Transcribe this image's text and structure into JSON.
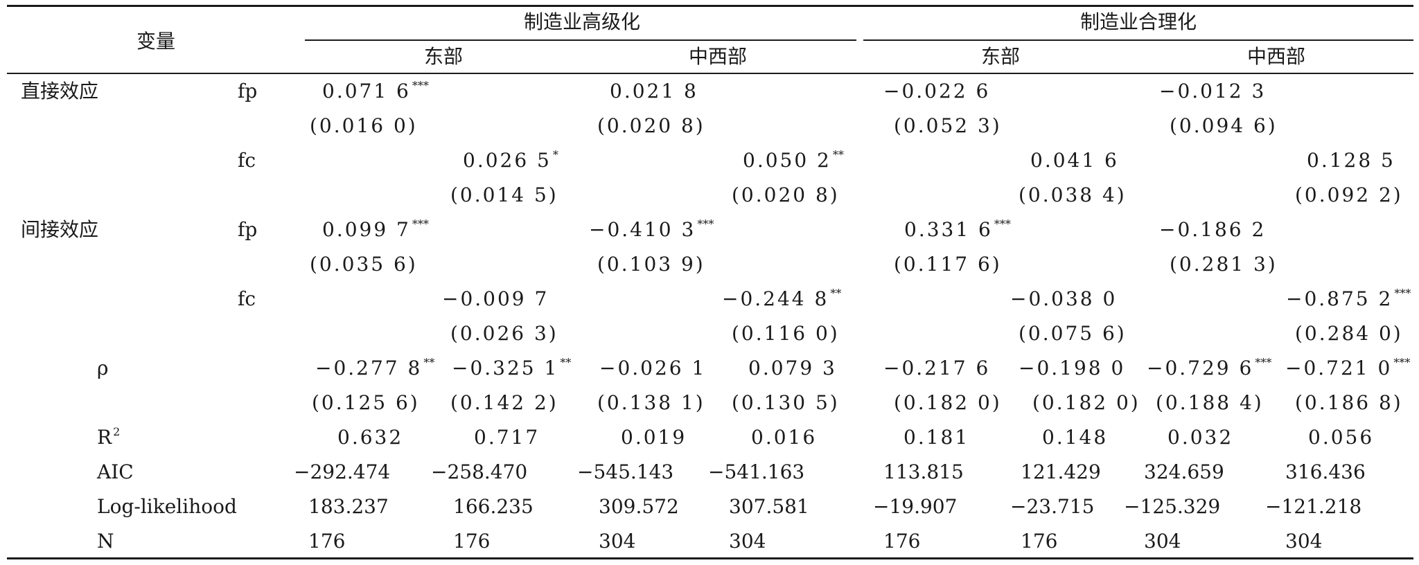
{
  "header": {
    "variable": "变量",
    "group_high": "制造业高级化",
    "group_rational": "制造业合理化",
    "east": "东部",
    "midwest": "中西部"
  },
  "sections": {
    "direct": "直接效应",
    "indirect": "间接效应"
  },
  "vars": {
    "fp": "fp",
    "fc": "fc"
  },
  "direct": {
    "fp": {
      "c1": {
        "v": "0.071 6",
        "s": "***",
        "se": "(0.016 0)"
      },
      "c3": {
        "v": "0.021 8",
        "s": "",
        "se": "(0.020 8)"
      },
      "c5": {
        "v": "−0.022 6",
        "s": "",
        "se": "(0.052 3)"
      },
      "c7": {
        "v": "−0.012 3",
        "s": "",
        "se": "(0.094 6)"
      }
    },
    "fc": {
      "c2": {
        "v": "0.026 5",
        "s": "*",
        "se": "(0.014 5)"
      },
      "c4": {
        "v": "0.050 2",
        "s": "**",
        "se": "(0.020 8)"
      },
      "c6": {
        "v": "0.041 6",
        "s": "",
        "se": "(0.038 4)"
      },
      "c8": {
        "v": "0.128 5",
        "s": "",
        "se": "(0.092 2)"
      }
    }
  },
  "indirect": {
    "fp": {
      "c1": {
        "v": "0.099 7",
        "s": "***",
        "se": "(0.035 6)"
      },
      "c3": {
        "v": "−0.410 3",
        "s": "***",
        "se": "(0.103 9)"
      },
      "c5": {
        "v": "0.331 6",
        "s": "***",
        "se": "(0.117 6)"
      },
      "c7": {
        "v": "−0.186 2",
        "s": "",
        "se": "(0.281 3)"
      }
    },
    "fc": {
      "c2": {
        "v": "−0.009 7",
        "s": "",
        "se": "(0.026 3)"
      },
      "c4": {
        "v": "−0.244 8",
        "s": "**",
        "se": "(0.116 0)"
      },
      "c6": {
        "v": "−0.038 0",
        "s": "",
        "se": "(0.075 6)"
      },
      "c8": {
        "v": "−0.875 2",
        "s": "***",
        "se": "(0.284 0)"
      }
    }
  },
  "rho": {
    "label": "ρ",
    "values": [
      {
        "v": "−0.277 8",
        "s": "**",
        "se": "(0.125 6)"
      },
      {
        "v": "−0.325 1",
        "s": "**",
        "se": "(0.142 2)"
      },
      {
        "v": "−0.026 1",
        "s": "",
        "se": "(0.138 1)"
      },
      {
        "v": "0.079 3",
        "s": "",
        "se": "(0.130 5)"
      },
      {
        "v": "−0.217 6",
        "s": "",
        "se": "(0.182 0)"
      },
      {
        "v": "−0.198 0",
        "s": "",
        "se": "(0.182 0)"
      },
      {
        "v": "−0.729 6",
        "s": "***",
        "se": "(0.188 4)"
      },
      {
        "v": "−0.721 0",
        "s": "***",
        "se": "(0.186 8)"
      }
    ]
  },
  "r2": {
    "label": "R",
    "sup": "2",
    "values": [
      "0.632",
      "0.717",
      "0.019",
      "0.016",
      "0.181",
      "0.148",
      "0.032",
      "0.056"
    ]
  },
  "aic": {
    "label": "AIC",
    "values": [
      "−292.474",
      "−258.470",
      "−545.143",
      "−541.163",
      "113.815",
      "121.429",
      "324.659",
      "316.436"
    ]
  },
  "loglik": {
    "label": "Log-likelihood",
    "values": [
      "183.237",
      "166.235",
      "309.572",
      "307.581",
      "−19.907",
      "−23.715",
      "−125.329",
      "−121.218"
    ]
  },
  "n": {
    "label": "N",
    "values": [
      "176",
      "176",
      "304",
      "304",
      "176",
      "176",
      "304",
      "304"
    ]
  }
}
